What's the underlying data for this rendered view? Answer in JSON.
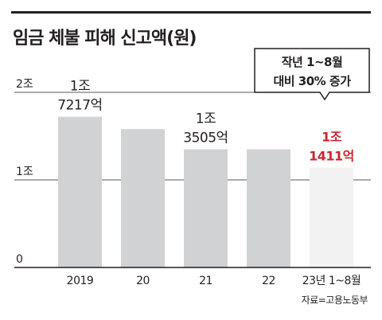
{
  "title": "임금 체불 피해 신고액(원)",
  "source": "자료=고용노동부",
  "annotation": {
    "line1": "작년 1~8월",
    "line2": "대비 30% 증가"
  },
  "colors": {
    "bar": "#d1d2d4",
    "bar_highlight": "#f2f2f3",
    "highlight_text": "#c8272e",
    "text": "#231f20",
    "axis": "#231f20",
    "grid": "#231f20"
  },
  "chart_data": {
    "type": "bar",
    "title": "임금 체불 피해 신고액(원)",
    "categories": [
      "2019",
      "20",
      "21",
      "22",
      "23년 1~8월"
    ],
    "values": [
      1.7217,
      1.58,
      1.3505,
      1.35,
      1.1411
    ],
    "unit": "조 원",
    "data_labels": [
      [
        "1조",
        "7217억"
      ],
      [
        "",
        ""
      ],
      [
        "1조",
        "3505억"
      ],
      [
        "",
        ""
      ],
      [
        "1조",
        "1411억"
      ]
    ],
    "highlight_index": 4,
    "ylim": [
      0,
      2
    ],
    "yticks": [
      0,
      1,
      2
    ],
    "ytick_labels": [
      "0",
      "1조",
      "2조"
    ],
    "grid": true,
    "xlabel": "",
    "ylabel": ""
  }
}
